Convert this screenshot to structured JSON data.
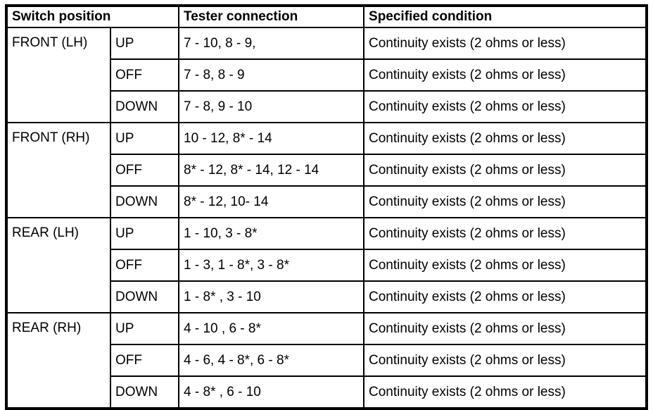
{
  "page": {
    "background": "#ffffff",
    "border_color": "#000000",
    "text_color": "#000000"
  },
  "table": {
    "headers": {
      "switch_position": "Switch position",
      "tester_connection": "Tester connection",
      "specified_condition": "Specified condition"
    },
    "groups": [
      {
        "switch": "FRONT (LH)",
        "rows": [
          {
            "position": "UP",
            "connection": "7 - 10, 8 - 9,",
            "condition": "Continuity exists (2 ohms or less)"
          },
          {
            "position": "OFF",
            "connection": "7 - 8, 8 - 9",
            "condition": "Continuity exists (2 ohms or less)"
          },
          {
            "position": "DOWN",
            "connection": "7 - 8, 9 - 10",
            "condition": "Continuity exists (2 ohms or less)"
          }
        ]
      },
      {
        "switch": "FRONT (RH)",
        "rows": [
          {
            "position": "UP",
            "connection": "10 - 12, 8* - 14",
            "condition": "Continuity exists (2 ohms or less)"
          },
          {
            "position": "OFF",
            "connection": "8* - 12, 8* - 14, 12 - 14",
            "condition": "Continuity exists (2 ohms or less)"
          },
          {
            "position": "DOWN",
            "connection": "8* - 12, 10- 14",
            "condition": "Continuity exists (2 ohms or less)"
          }
        ]
      },
      {
        "switch": "REAR (LH)",
        "rows": [
          {
            "position": "UP",
            "connection": "1 - 10, 3 - 8*",
            "condition": "Continuity exists (2 ohms or less)"
          },
          {
            "position": "OFF",
            "connection": "1 - 3, 1 - 8*, 3 - 8*",
            "condition": "Continuity exists (2 ohms or less)"
          },
          {
            "position": "DOWN",
            "connection": "1 - 8* , 3 - 10",
            "condition": "Continuity exists (2 ohms or less)"
          }
        ]
      },
      {
        "switch": "REAR (RH)",
        "rows": [
          {
            "position": "UP",
            "connection": "4 - 10 , 6 - 8*",
            "condition": "Continuity exists (2 ohms or less)"
          },
          {
            "position": "OFF",
            "connection": "4 - 6, 4 - 8*, 6 - 8*",
            "condition": "Continuity exists (2 ohms or less)"
          },
          {
            "position": "DOWN",
            "connection": "4 - 8* , 6 - 10",
            "condition": "Continuity exists (2 ohms or less)"
          }
        ]
      }
    ]
  }
}
